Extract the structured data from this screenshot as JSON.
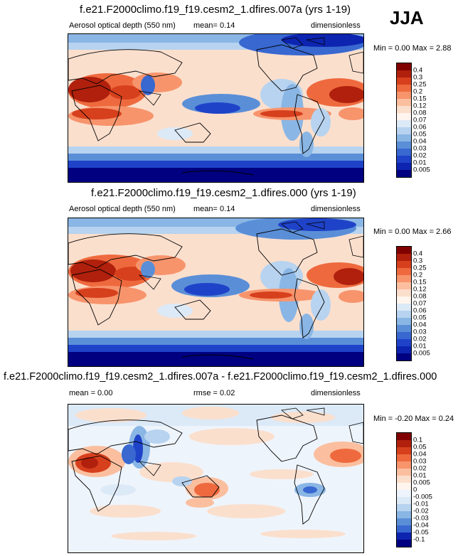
{
  "season": "JJA",
  "panels": [
    {
      "title": "f.e21.F2000climo.f19_f19.cesm2_1.dfires.007a (yrs 1-19)",
      "variable": "Aerosol optical depth (550 nm)",
      "stat": "mean=  0.14",
      "units": "dimensionless",
      "minmax": "Min =  0.00 Max =  2.88",
      "colorbar": {
        "labels": [
          "0.4",
          "0.3",
          "0.25",
          "0.2",
          "0.15",
          "0.12",
          "0.08",
          "0.07",
          "0.06",
          "0.05",
          "0.04",
          "0.03",
          "0.02",
          "0.01",
          "0.005"
        ],
        "colors": [
          "#800000",
          "#b0200c",
          "#d7401d",
          "#ee6a3e",
          "#f7946c",
          "#fbbf9f",
          "#fbdfcd",
          "#fff5ee",
          "#dce9f7",
          "#b7d3ef",
          "#8ab6e5",
          "#5a8fd8",
          "#3868d0",
          "#1f43c8",
          "#0d24b0",
          "#000080"
        ]
      }
    },
    {
      "title": "f.e21.F2000climo.f19_f19.cesm2_1.dfires.000 (yrs 1-19)",
      "variable": "Aerosol optical depth (550 nm)",
      "stat": "mean=  0.14",
      "units": "dimensionless",
      "minmax": "Min =  0.00 Max =  2.66",
      "colorbar": {
        "labels": [
          "0.4",
          "0.3",
          "0.25",
          "0.2",
          "0.15",
          "0.12",
          "0.08",
          "0.07",
          "0.06",
          "0.05",
          "0.04",
          "0.03",
          "0.02",
          "0.01",
          "0.005"
        ],
        "colors": [
          "#800000",
          "#b0200c",
          "#d7401d",
          "#ee6a3e",
          "#f7946c",
          "#fbbf9f",
          "#fbdfcd",
          "#fff5ee",
          "#dce9f7",
          "#b7d3ef",
          "#8ab6e5",
          "#5a8fd8",
          "#3868d0",
          "#1f43c8",
          "#0d24b0",
          "#000080"
        ]
      }
    },
    {
      "title": "f.e21.F2000climo.f19_f19.cesm2_1.dfires.007a - f.e21.F2000climo.f19_f19.cesm2_1.dfires.000",
      "variable": "mean =  0.00",
      "stat": "rmse =  0.02",
      "units": "dimensionless",
      "minmax": "Min = -0.20 Max =  0.24",
      "colorbar": {
        "labels": [
          "0.1",
          "0.05",
          "0.04",
          "0.03",
          "0.02",
          "0.01",
          "0.005",
          "0",
          "-0.005",
          "-0.01",
          "-0.02",
          "-0.03",
          "-0.04",
          "-0.05",
          "-0.1"
        ],
        "colors": [
          "#800000",
          "#b0200c",
          "#d7401d",
          "#ee6a3e",
          "#f7946c",
          "#fbbf9f",
          "#fbdfcd",
          "#fff5ee",
          "#eef4fb",
          "#dce9f7",
          "#b7d3ef",
          "#8ab6e5",
          "#5a8fd8",
          "#3868d0",
          "#0d24b0",
          "#000080"
        ]
      }
    }
  ]
}
